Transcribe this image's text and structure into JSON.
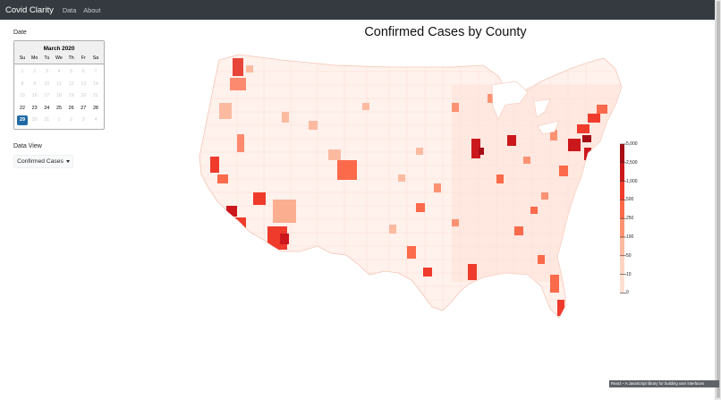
{
  "navbar": {
    "brand": "Covid Clarity",
    "links": [
      "Data",
      "About"
    ]
  },
  "sidebar": {
    "date_label": "Date",
    "datepicker": {
      "month": "March 2020",
      "weekdays": [
        "Su",
        "Mo",
        "Tu",
        "We",
        "Th",
        "Fr",
        "Sa"
      ],
      "weeks": [
        [
          {
            "d": "1",
            "m": true
          },
          {
            "d": "2",
            "m": true
          },
          {
            "d": "3",
            "m": true
          },
          {
            "d": "4",
            "m": true
          },
          {
            "d": "5",
            "m": true
          },
          {
            "d": "6",
            "m": true
          },
          {
            "d": "7",
            "m": true
          }
        ],
        [
          {
            "d": "8",
            "m": true
          },
          {
            "d": "9",
            "m": true
          },
          {
            "d": "10",
            "m": true
          },
          {
            "d": "11",
            "m": true
          },
          {
            "d": "12",
            "m": true
          },
          {
            "d": "13",
            "m": true
          },
          {
            "d": "14",
            "m": true
          }
        ],
        [
          {
            "d": "15",
            "m": true
          },
          {
            "d": "16",
            "m": true
          },
          {
            "d": "17",
            "m": true
          },
          {
            "d": "18",
            "m": true
          },
          {
            "d": "19",
            "m": true
          },
          {
            "d": "20",
            "m": true
          },
          {
            "d": "21",
            "m": true
          }
        ],
        [
          {
            "d": "22",
            "m": false
          },
          {
            "d": "23",
            "m": false
          },
          {
            "d": "24",
            "m": false
          },
          {
            "d": "25",
            "m": false
          },
          {
            "d": "26",
            "m": false
          },
          {
            "d": "27",
            "m": false
          },
          {
            "d": "28",
            "m": false
          }
        ],
        [
          {
            "d": "29",
            "m": false,
            "s": true
          },
          {
            "d": "30",
            "m": true
          },
          {
            "d": "31",
            "m": true
          },
          {
            "d": "1",
            "m": true
          },
          {
            "d": "2",
            "m": true
          },
          {
            "d": "3",
            "m": true
          },
          {
            "d": "4",
            "m": true
          }
        ]
      ]
    },
    "data_view_label": "Data View",
    "data_view_value": "Confirmed Cases"
  },
  "map": {
    "title": "Confirmed Cases by County",
    "legend": {
      "labels": [
        "5,000",
        "2,500",
        "1,000",
        "500",
        "250",
        "100",
        "50",
        "10",
        "0"
      ],
      "colors": [
        "#a50f15",
        "#cb181d",
        "#ef3b2c",
        "#fb6a4a",
        "#fc9272",
        "#fcbba1",
        "#fdd5c3",
        "#fee0d2",
        "#fff5f0"
      ]
    }
  },
  "footer": {
    "text": "React – A JavaScript library for building user interfaces"
  }
}
